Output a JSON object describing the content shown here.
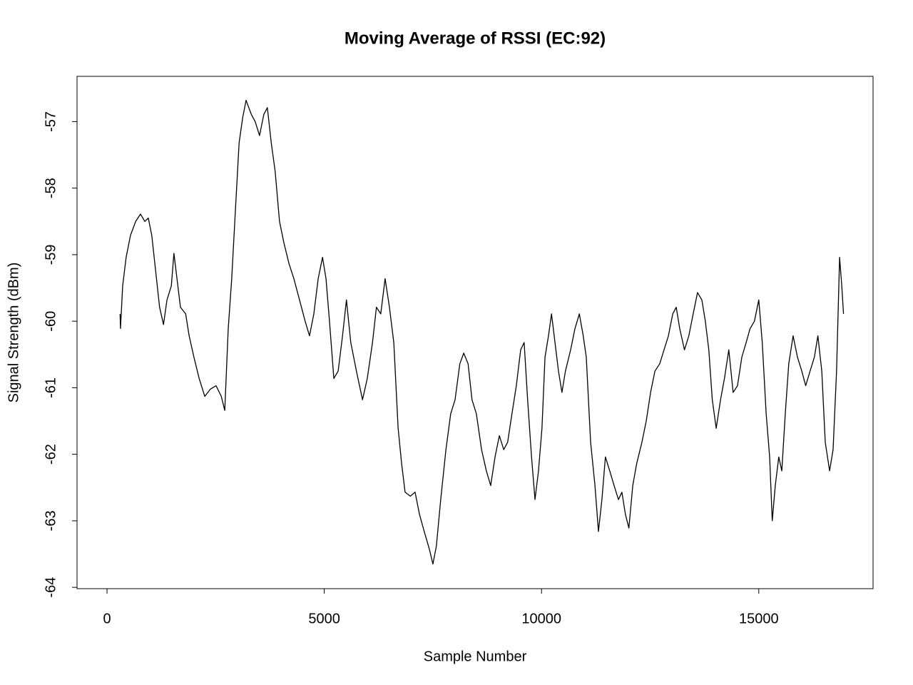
{
  "chart_data": {
    "type": "line",
    "title": "Moving Average of RSSI (EC:92)",
    "x_label": "Sample Number",
    "y_label": "Signal Strength (dBm)",
    "color": "#000000",
    "xlim": [
      -690,
      17630
    ],
    "ylim": [
      -64.02,
      -56.32
    ],
    "xticks": [
      0,
      5000,
      10000,
      15000
    ],
    "yticks": [
      -64,
      -63,
      -62,
      -61,
      -60,
      -59,
      -58,
      -57
    ],
    "x": [
      300,
      310,
      360,
      440,
      540,
      660,
      770,
      870,
      950,
      1030,
      1120,
      1210,
      1300,
      1380,
      1480,
      1540,
      1610,
      1690,
      1810,
      1890,
      2000,
      2120,
      2250,
      2380,
      2510,
      2630,
      2710,
      2790,
      2870,
      2950,
      3040,
      3120,
      3200,
      3320,
      3410,
      3510,
      3610,
      3690,
      3780,
      3870,
      3970,
      4070,
      4190,
      4300,
      4430,
      4560,
      4660,
      4760,
      4860,
      4960,
      5040,
      5120,
      5220,
      5320,
      5420,
      5510,
      5610,
      5740,
      5880,
      5990,
      6110,
      6200,
      6300,
      6400,
      6500,
      6600,
      6700,
      6780,
      6860,
      6980,
      7090,
      7190,
      7300,
      7420,
      7500,
      7580,
      7680,
      7800,
      7910,
      8010,
      8120,
      8210,
      8310,
      8400,
      8500,
      8620,
      8730,
      8830,
      8930,
      9030,
      9130,
      9220,
      9320,
      9420,
      9520,
      9600,
      9680,
      9770,
      9850,
      9930,
      10010,
      10080,
      10160,
      10230,
      10310,
      10390,
      10470,
      10550,
      10670,
      10770,
      10870,
      10960,
      11030,
      11130,
      11230,
      11310,
      11390,
      11470,
      11570,
      11670,
      11770,
      11850,
      11930,
      12010,
      12100,
      12190,
      12310,
      12410,
      12510,
      12610,
      12720,
      12820,
      12920,
      13020,
      13100,
      13180,
      13290,
      13390,
      13490,
      13590,
      13690,
      13770,
      13850,
      13930,
      14020,
      14120,
      14210,
      14310,
      14410,
      14510,
      14610,
      14710,
      14800,
      14900,
      15000,
      15080,
      15170,
      15250,
      15310,
      15380,
      15460,
      15530,
      15610,
      15690,
      15790,
      15890,
      15990,
      16080,
      16180,
      16280,
      16360,
      16450,
      16530,
      16630,
      16710,
      16790,
      16860,
      16910,
      16950
    ],
    "values": [
      -59.89,
      -60.11,
      -59.47,
      -59.04,
      -58.71,
      -58.5,
      -58.39,
      -58.5,
      -58.45,
      -58.71,
      -59.25,
      -59.79,
      -60.05,
      -59.68,
      -59.47,
      -58.98,
      -59.36,
      -59.79,
      -59.89,
      -60.22,
      -60.54,
      -60.86,
      -61.13,
      -61.02,
      -60.97,
      -61.13,
      -61.34,
      -60.11,
      -59.36,
      -58.39,
      -57.32,
      -56.95,
      -56.68,
      -56.89,
      -57.0,
      -57.21,
      -56.89,
      -56.79,
      -57.32,
      -57.75,
      -58.5,
      -58.82,
      -59.14,
      -59.36,
      -59.68,
      -60.0,
      -60.22,
      -59.89,
      -59.36,
      -59.04,
      -59.36,
      -60.0,
      -60.86,
      -60.75,
      -60.22,
      -59.68,
      -60.32,
      -60.75,
      -61.18,
      -60.86,
      -60.32,
      -59.79,
      -59.89,
      -59.36,
      -59.79,
      -60.32,
      -61.61,
      -62.14,
      -62.57,
      -62.63,
      -62.57,
      -62.9,
      -63.16,
      -63.43,
      -63.65,
      -63.38,
      -62.68,
      -61.93,
      -61.39,
      -61.18,
      -60.64,
      -60.48,
      -60.64,
      -61.18,
      -61.39,
      -61.93,
      -62.25,
      -62.47,
      -62.04,
      -61.72,
      -61.93,
      -61.82,
      -61.39,
      -60.97,
      -60.43,
      -60.32,
      -61.18,
      -62.04,
      -62.68,
      -62.25,
      -61.61,
      -60.54,
      -60.22,
      -59.89,
      -60.32,
      -60.75,
      -61.07,
      -60.75,
      -60.43,
      -60.11,
      -59.89,
      -60.22,
      -60.54,
      -61.82,
      -62.47,
      -63.16,
      -62.68,
      -62.04,
      -62.25,
      -62.47,
      -62.68,
      -62.57,
      -62.9,
      -63.11,
      -62.47,
      -62.14,
      -61.82,
      -61.5,
      -61.07,
      -60.75,
      -60.64,
      -60.43,
      -60.22,
      -59.89,
      -59.79,
      -60.11,
      -60.43,
      -60.22,
      -59.89,
      -59.57,
      -59.68,
      -60.0,
      -60.43,
      -61.18,
      -61.61,
      -61.18,
      -60.86,
      -60.43,
      -61.07,
      -60.97,
      -60.54,
      -60.32,
      -60.11,
      -60.0,
      -59.68,
      -60.32,
      -61.39,
      -62.04,
      -63.0,
      -62.47,
      -62.04,
      -62.25,
      -61.39,
      -60.64,
      -60.22,
      -60.54,
      -60.75,
      -60.97,
      -60.75,
      -60.54,
      -60.22,
      -60.75,
      -61.82,
      -62.25,
      -61.93,
      -60.75,
      -59.04,
      -59.47,
      -59.89
    ]
  }
}
